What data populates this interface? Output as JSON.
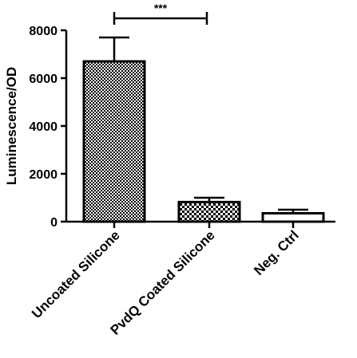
{
  "chart_data": {
    "type": "bar",
    "categories": [
      "Uncoated Silicone",
      "PvdQ Coated Silicone",
      "Neg. Ctrl"
    ],
    "values": [
      6700,
      820,
      350
    ],
    "errors": [
      1000,
      180,
      150
    ],
    "ylabel": "Luminescence/OD",
    "ylim": [
      0,
      8000
    ],
    "yticks": [
      0,
      2000,
      4000,
      6000,
      8000
    ],
    "grid": false,
    "bar_patterns": [
      "checker-small",
      "checker-large",
      "empty"
    ],
    "significance": {
      "from": 0,
      "to": 1,
      "label": "***"
    },
    "colors": {
      "bar_stroke": "#000000",
      "pattern_fill": "#000000",
      "background": "#ffffff"
    }
  }
}
